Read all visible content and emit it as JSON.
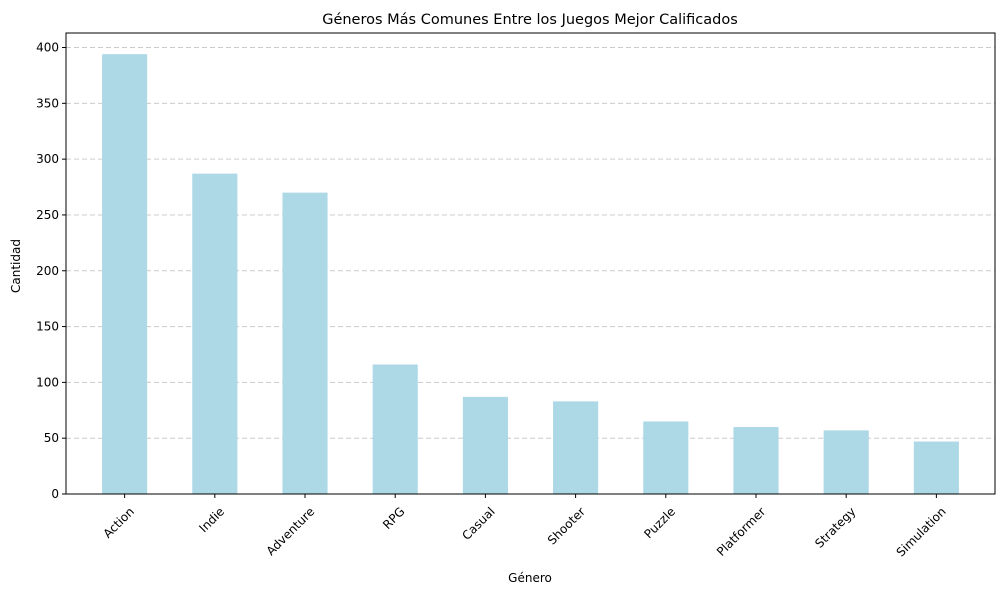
{
  "chart_data": {
    "type": "bar",
    "title": "Géneros Más Comunes Entre los Juegos Mejor Calificados",
    "xlabel": "Género",
    "ylabel": "Cantidad",
    "categories": [
      "Action",
      "Indie",
      "Adventure",
      "RPG",
      "Casual",
      "Shooter",
      "Puzzle",
      "Platformer",
      "Strategy",
      "Simulation"
    ],
    "values": [
      394,
      287,
      270,
      116,
      87,
      83,
      65,
      60,
      57,
      47
    ],
    "ylim": [
      0,
      413
    ],
    "yticks": [
      0,
      50,
      100,
      150,
      200,
      250,
      300,
      350,
      400
    ],
    "grid": "y-dashed",
    "bar_color": "#add8e6",
    "grid_color": "#cccccc"
  }
}
